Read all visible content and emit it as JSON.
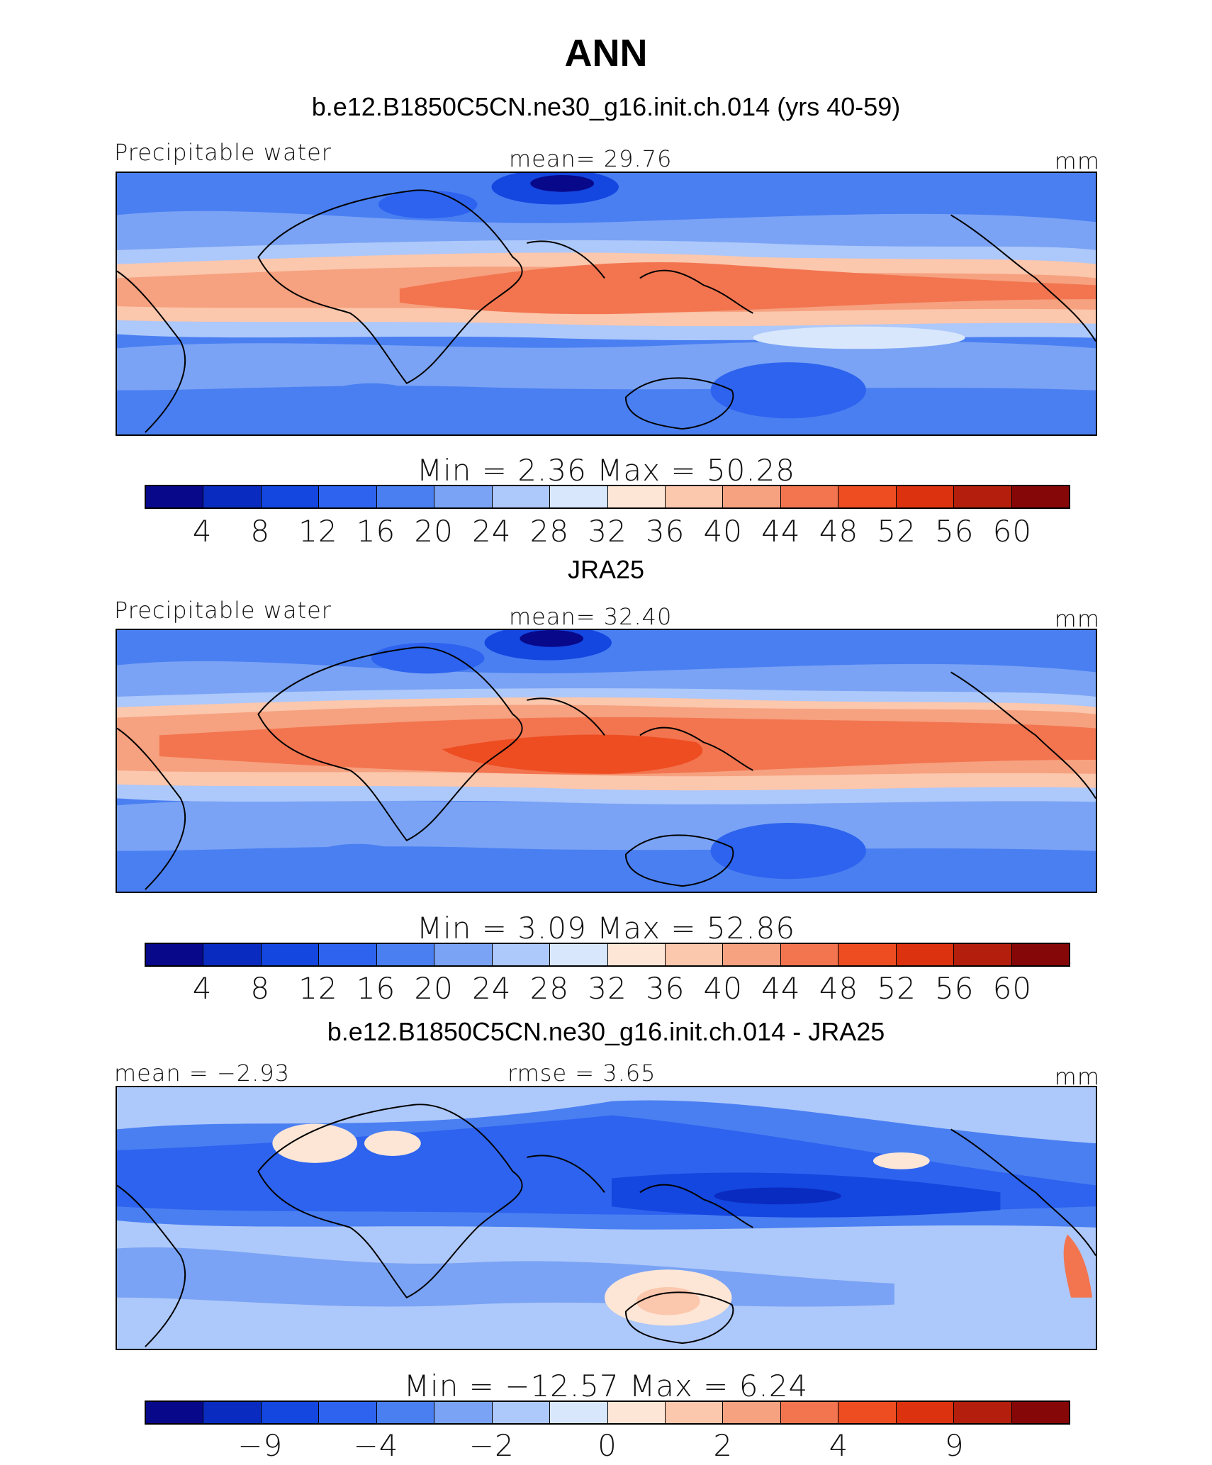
{
  "title": "ANN",
  "palette": [
    "#08088a",
    "#0a2bbf",
    "#1446e0",
    "#2d63ee",
    "#4a7ff2",
    "#7aa3f5",
    "#adc8fa",
    "#d8e7fc",
    "#fde6d6",
    "#fbc7ad",
    "#f6a17f",
    "#f27550",
    "#ee4d22",
    "#dc3210",
    "#b31f0c",
    "#860707"
  ],
  "panels": [
    {
      "subtitle": "b.e12.B1850C5CN.ne30_g16.init.ch.014 (yrs 40-59)",
      "left_label": "Precipitable  water",
      "center_label": "mean=   29.76",
      "right_label": "mm",
      "minmax": "Min  =     2.36  Max  =    50.28",
      "ticks": [
        "4",
        "8",
        "12",
        "16",
        "20",
        "24",
        "28",
        "32",
        "36",
        "40",
        "44",
        "48",
        "52",
        "56",
        "60"
      ],
      "field": "model"
    },
    {
      "subtitle": "JRA25",
      "left_label": "Precipitable  water",
      "center_label": "mean=   32.40",
      "right_label": "mm",
      "minmax": "Min  =     3.09  Max  =    52.86",
      "ticks": [
        "4",
        "8",
        "12",
        "16",
        "20",
        "24",
        "28",
        "32",
        "36",
        "40",
        "44",
        "48",
        "52",
        "56",
        "60"
      ],
      "field": "obs"
    },
    {
      "subtitle": "b.e12.B1850C5CN.ne30_g16.init.ch.014 - JRA25",
      "left_label": "mean  =   −2.93",
      "center_label": "rmse  =     3.65",
      "right_label": "mm",
      "minmax": "Min  =  −12.57  Max  =     6.24",
      "ticks": [
        "−9",
        "−4",
        "−2",
        "0",
        "2",
        "4",
        "9"
      ],
      "field": "diff"
    }
  ]
}
